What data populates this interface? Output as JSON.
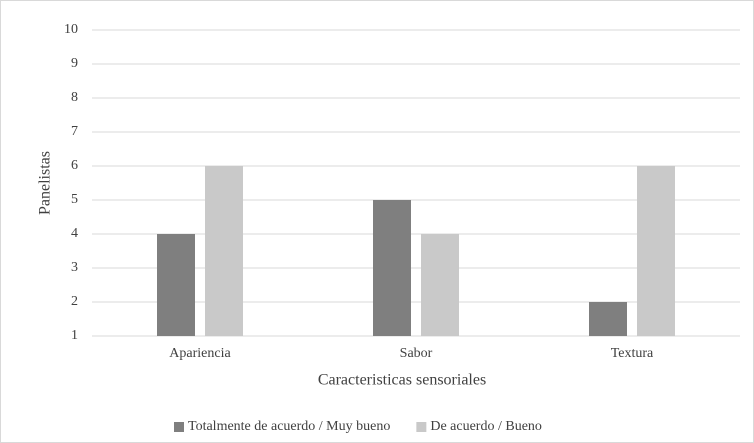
{
  "chart_data": {
    "type": "bar",
    "categories": [
      "Apariencia",
      "Sabor",
      "Textura"
    ],
    "series": [
      {
        "name": "Totalmente de acuerdo / Muy bueno",
        "color": "#7f7f7f",
        "values": [
          4,
          5,
          2
        ]
      },
      {
        "name": "De acuerdo / Bueno",
        "color": "#c9c9c9",
        "values": [
          6,
          4,
          6
        ]
      }
    ],
    "xlabel": "Caracteristicas sensoriales",
    "ylabel": "Panelistas",
    "ylim": [
      1,
      10
    ],
    "yticks": [
      1,
      2,
      3,
      4,
      5,
      6,
      7,
      8,
      9,
      10
    ],
    "grid": true,
    "legend": "bottom"
  }
}
